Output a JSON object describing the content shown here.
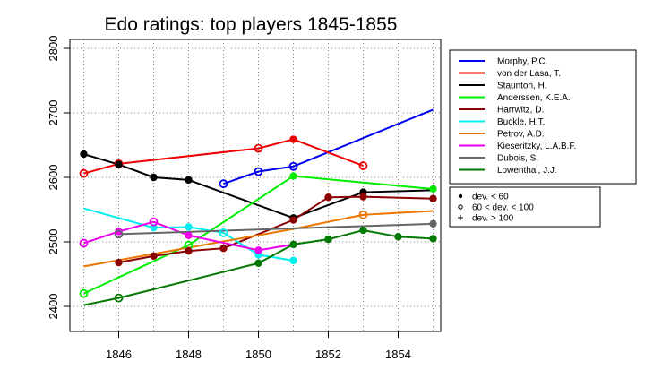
{
  "chart_data": {
    "type": "line",
    "title": "Edo ratings: top players 1845-1855",
    "xlabel": "",
    "ylabel": "",
    "xlim": [
      1845,
      1855
    ],
    "ylim": [
      2400,
      2800
    ],
    "xticks": [
      1846,
      1848,
      1850,
      1852,
      1854
    ],
    "yticks": [
      2400,
      2500,
      2600,
      2700,
      2800
    ],
    "grid": "dotted",
    "legend_position": "right",
    "marker_legend": [
      {
        "symbol": "filled",
        "label": "dev. < 60"
      },
      {
        "symbol": "open",
        "label": "60 < dev. < 100"
      },
      {
        "symbol": "plus",
        "label": "dev. > 100"
      }
    ],
    "series": [
      {
        "name": "Morphy, P.C.",
        "color": "#0000ee",
        "x": [
          1849,
          1850,
          1851,
          1855
        ],
        "y": [
          2590,
          2609,
          2617,
          2705
        ],
        "markers": [
          "open",
          "open",
          "open",
          "none"
        ]
      },
      {
        "name": "von der Lasa, T.",
        "color": "#ee0000",
        "x": [
          1845,
          1846,
          1850,
          1851,
          1853
        ],
        "y": [
          2606,
          2621,
          2645,
          2659,
          2618
        ],
        "markers": [
          "open",
          "open",
          "open",
          "filled",
          "open"
        ]
      },
      {
        "name": "Staunton, H.",
        "color": "#000000",
        "x": [
          1845,
          1846,
          1847,
          1848,
          1851,
          1853,
          1855
        ],
        "y": [
          2636,
          2620,
          2600,
          2596,
          2537,
          2577,
          2580
        ],
        "markers": [
          "filled",
          "filled",
          "filled",
          "filled",
          "filled",
          "filled",
          "none"
        ]
      },
      {
        "name": "Anderssen, K.E.A.",
        "color": "#00ee00",
        "x": [
          1845,
          1848,
          1851,
          1855
        ],
        "y": [
          2420,
          2495,
          2602,
          2582
        ],
        "markers": [
          "open",
          "open",
          "filled",
          "filled"
        ]
      },
      {
        "name": "Harrwitz, D.",
        "color": "#8b0000",
        "x": [
          1846,
          1847,
          1848,
          1849,
          1851,
          1852,
          1853,
          1855
        ],
        "y": [
          2468,
          2478,
          2486,
          2490,
          2534,
          2569,
          2570,
          2567
        ],
        "markers": [
          "filled",
          "filled",
          "filled",
          "filled",
          "filled",
          "filled",
          "filled",
          "filled"
        ]
      },
      {
        "name": "Buckle, H.T.",
        "color": "#00eeee",
        "x": [
          1845,
          1847,
          1848,
          1849,
          1850,
          1851
        ],
        "y": [
          2552,
          2522,
          2523,
          2514,
          2480,
          2471
        ],
        "markers": [
          "none",
          "filled",
          "filled",
          "open",
          "filled",
          "filled"
        ]
      },
      {
        "name": "Petrov, A.D.",
        "color": "#ee7600",
        "x": [
          1845,
          1851,
          1853,
          1855
        ],
        "y": [
          2462,
          2520,
          2542,
          2548
        ],
        "markers": [
          "none",
          "none",
          "open",
          "none"
        ]
      },
      {
        "name": "Kieseritzky, L.A.B.F.",
        "color": "#ee00ee",
        "x": [
          1845,
          1846,
          1847,
          1848,
          1850,
          1851
        ],
        "y": [
          2498,
          2516,
          2531,
          2510,
          2487,
          2496
        ],
        "markers": [
          "open",
          "filled",
          "open",
          "filled",
          "filled",
          "none"
        ]
      },
      {
        "name": "Dubois, S.",
        "color": "#666666",
        "x": [
          1846,
          1855
        ],
        "y": [
          2512,
          2528
        ],
        "markers": [
          "open",
          "filled"
        ]
      },
      {
        "name": "Lowenthal, J.J.",
        "color": "#007a00",
        "x": [
          1845,
          1846,
          1850,
          1851,
          1852,
          1853,
          1854,
          1855
        ],
        "y": [
          2402,
          2413,
          2467,
          2496,
          2504,
          2518,
          2508,
          2505
        ],
        "markers": [
          "none",
          "open",
          "filled",
          "filled",
          "filled",
          "filled",
          "filled",
          "filled"
        ]
      }
    ]
  }
}
